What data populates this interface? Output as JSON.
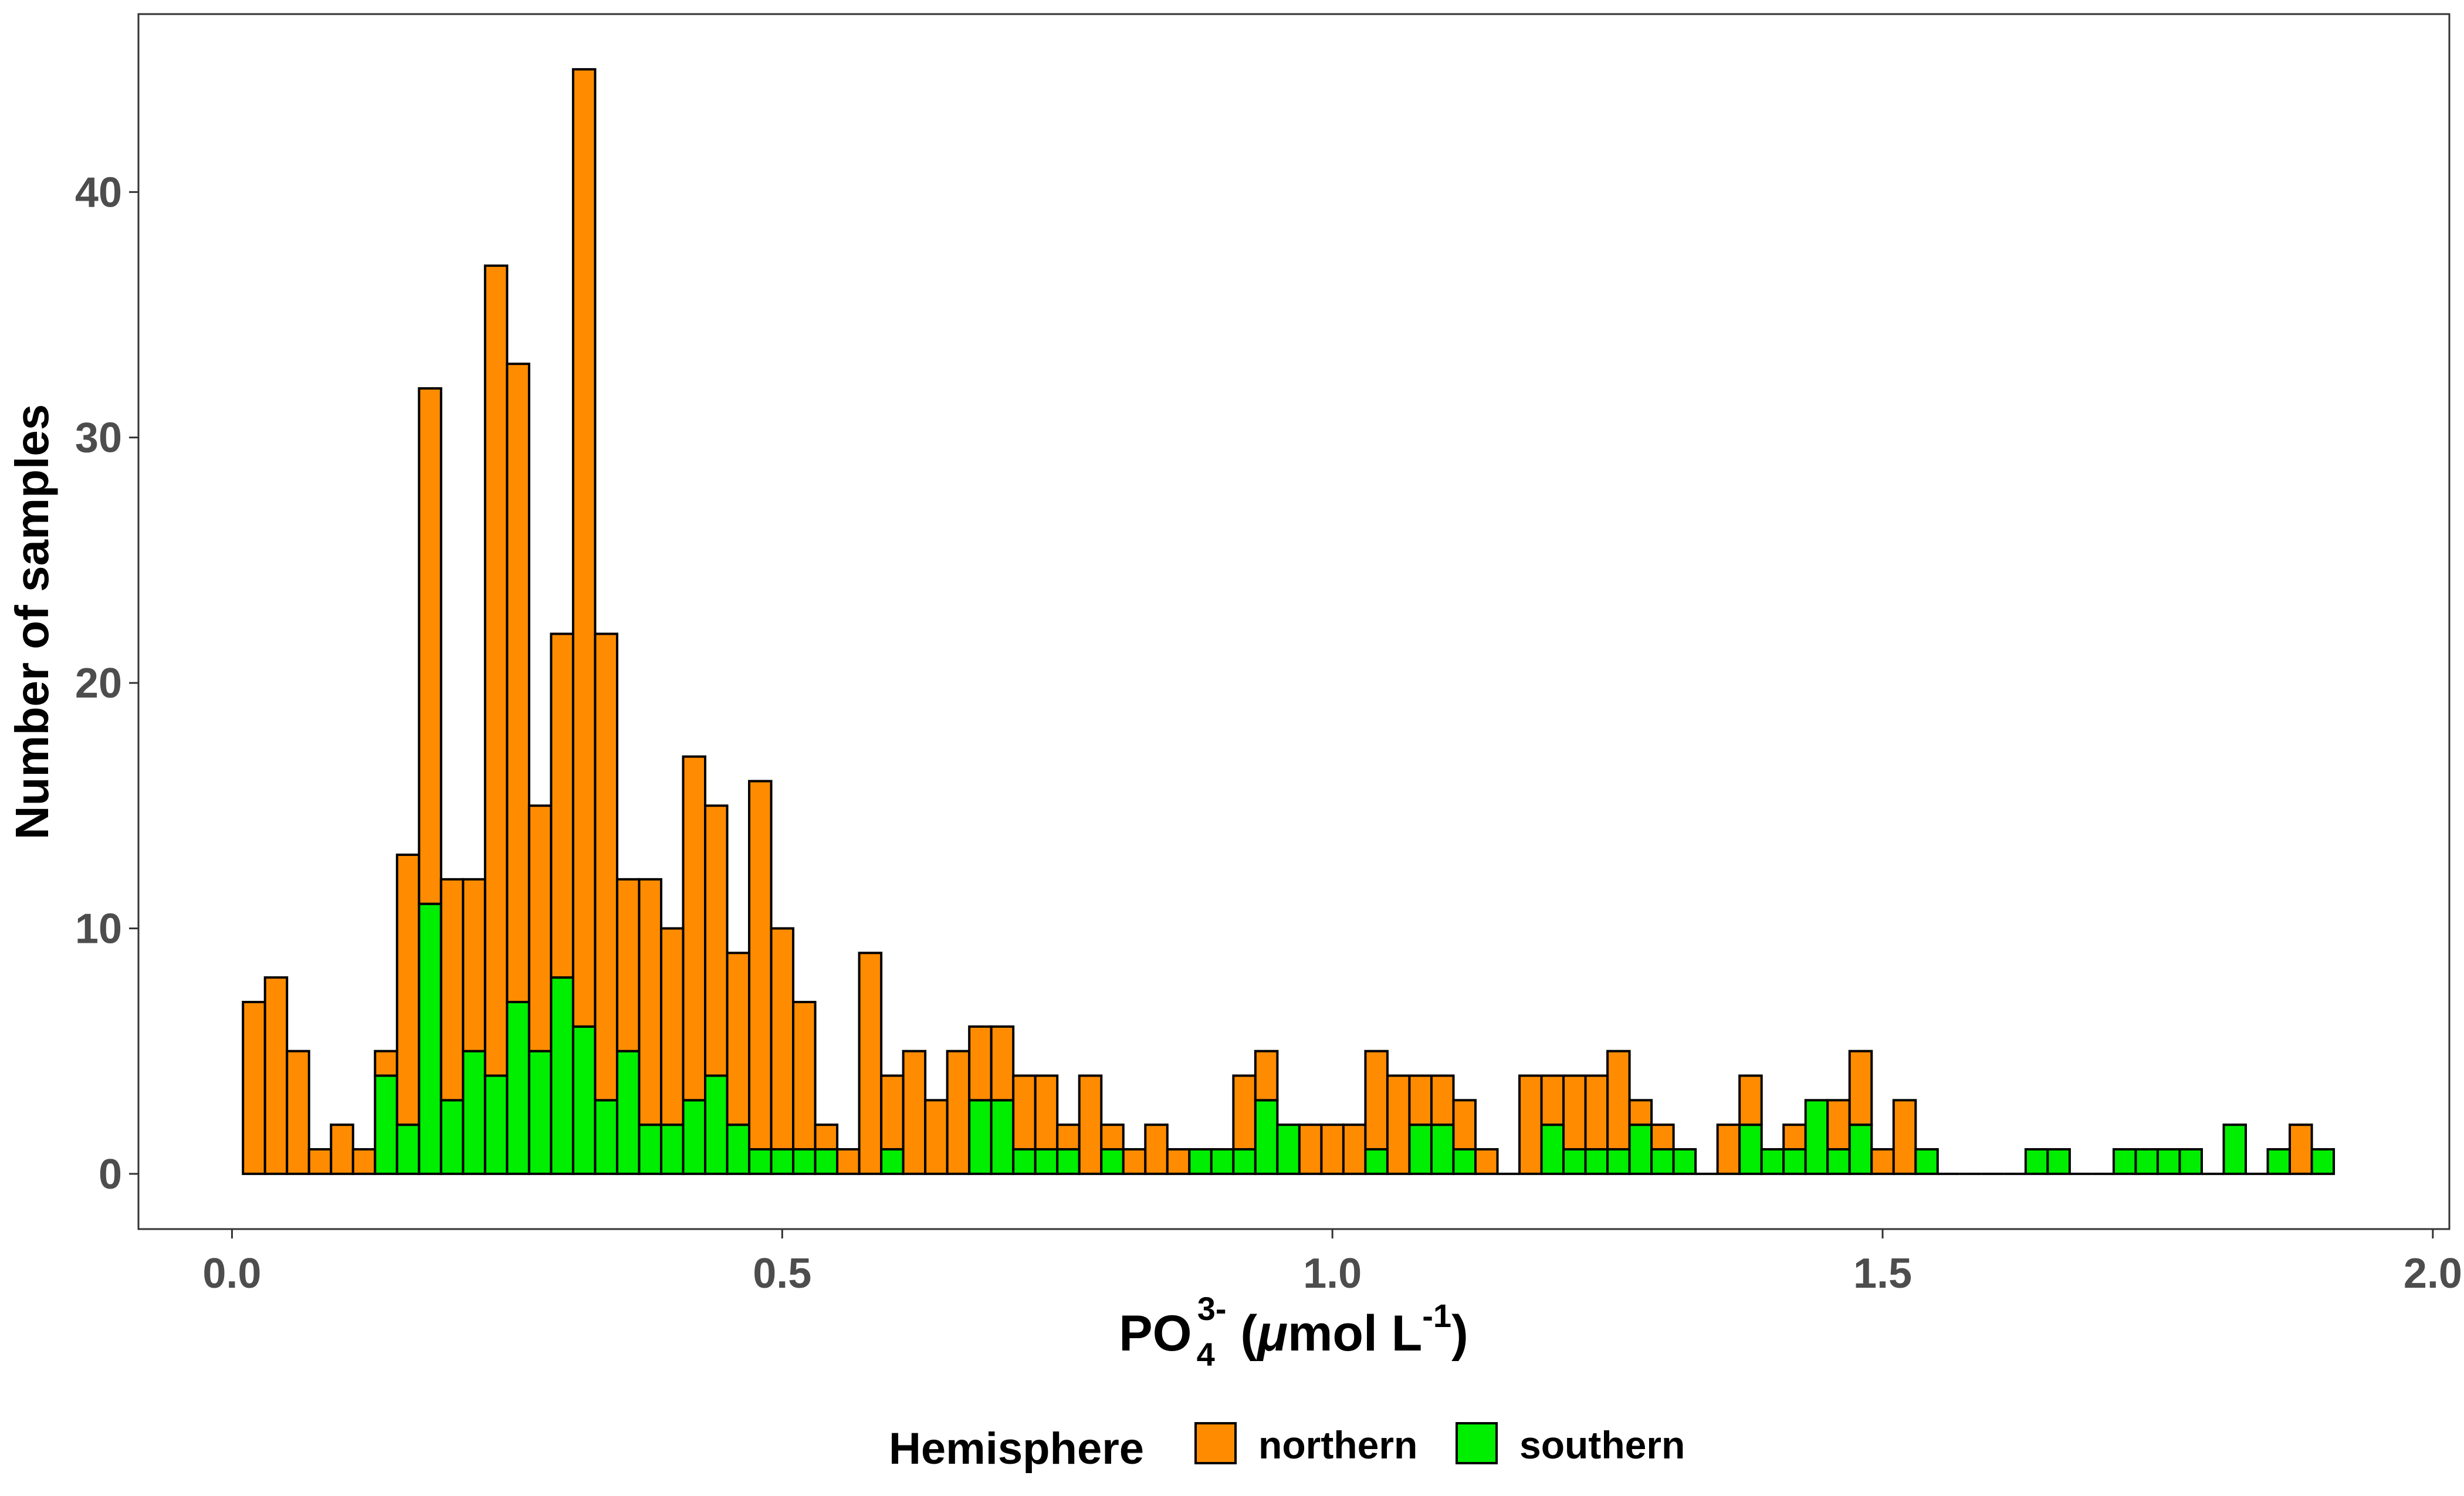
{
  "chart_data": {
    "type": "bar",
    "stacked": true,
    "x_base": "PO",
    "x_base_sub": "4",
    "x_base_sup": "3-",
    "x_unit_open": " (",
    "x_unit_mu": "μ",
    "x_unit_mid": "mol L",
    "x_unit_sup": "-1",
    "x_unit_close": ")",
    "ylabel": "Number of samples",
    "xlim": [
      -0.085,
      2.015
    ],
    "ylim": [
      -2.25,
      47.25
    ],
    "xticks": [
      "0.0",
      "0.5",
      "1.0",
      "1.5",
      "2.0"
    ],
    "xtick_values": [
      0.0,
      0.5,
      1.0,
      1.5,
      2.0
    ],
    "yticks": [
      "0",
      "10",
      "20",
      "30",
      "40"
    ],
    "ytick_values": [
      0,
      10,
      20,
      30,
      40
    ],
    "bin_width": 0.02,
    "bin_centers": [
      0.02,
      0.04,
      0.06,
      0.08,
      0.1,
      0.12,
      0.14,
      0.16,
      0.18,
      0.2,
      0.22,
      0.24,
      0.26,
      0.28,
      0.3,
      0.32,
      0.34,
      0.36,
      0.38,
      0.4,
      0.42,
      0.44,
      0.46,
      0.48,
      0.5,
      0.52,
      0.54,
      0.56,
      0.58,
      0.6,
      0.62,
      0.64,
      0.66,
      0.68,
      0.7,
      0.72,
      0.74,
      0.76,
      0.78,
      0.8,
      0.82,
      0.84,
      0.86,
      0.88,
      0.9,
      0.92,
      0.94,
      0.96,
      0.98,
      1.0,
      1.02,
      1.04,
      1.06,
      1.08,
      1.1,
      1.12,
      1.14,
      1.16,
      1.18,
      1.2,
      1.22,
      1.24,
      1.26,
      1.28,
      1.3,
      1.32,
      1.34,
      1.36,
      1.38,
      1.4,
      1.42,
      1.44,
      1.46,
      1.48,
      1.5,
      1.52,
      1.54,
      1.56,
      1.58,
      1.6,
      1.62,
      1.64,
      1.66,
      1.68,
      1.7,
      1.72,
      1.74,
      1.76,
      1.78,
      1.8,
      1.82,
      1.84,
      1.86,
      1.88,
      1.9
    ],
    "series": [
      {
        "name": "northern",
        "color": "#ff8c00",
        "values": [
          7,
          8,
          5,
          1,
          2,
          1,
          1,
          11,
          21,
          9,
          7,
          33,
          26,
          10,
          14,
          39,
          19,
          7,
          10,
          8,
          14,
          11,
          7,
          15,
          9,
          6,
          1,
          1,
          9,
          3,
          5,
          3,
          5,
          3,
          3,
          3,
          3,
          1,
          4,
          1,
          1,
          2,
          1,
          0,
          0,
          3,
          2,
          0,
          2,
          2,
          2,
          4,
          4,
          2,
          2,
          2,
          1,
          0,
          4,
          2,
          3,
          3,
          4,
          1,
          1,
          0,
          0,
          2,
          2,
          0,
          1,
          0,
          2,
          3,
          1,
          3,
          0,
          0,
          0,
          0,
          0,
          0,
          0,
          0,
          0,
          0,
          0,
          0,
          0,
          0,
          0,
          0,
          0,
          2,
          0
        ]
      },
      {
        "name": "southern",
        "color": "#00ee00",
        "values": [
          0,
          0,
          0,
          0,
          0,
          0,
          4,
          2,
          11,
          3,
          5,
          4,
          7,
          5,
          8,
          6,
          3,
          5,
          2,
          2,
          3,
          4,
          2,
          1,
          1,
          1,
          1,
          0,
          0,
          1,
          0,
          0,
          0,
          3,
          3,
          1,
          1,
          1,
          0,
          1,
          0,
          0,
          0,
          1,
          1,
          1,
          3,
          2,
          0,
          0,
          0,
          1,
          0,
          2,
          2,
          1,
          0,
          0,
          0,
          2,
          1,
          1,
          1,
          2,
          1,
          1,
          0,
          0,
          2,
          1,
          1,
          3,
          1,
          2,
          0,
          0,
          1,
          0,
          0,
          0,
          0,
          1,
          1,
          0,
          0,
          1,
          1,
          1,
          1,
          0,
          2,
          0,
          1,
          0,
          1
        ]
      }
    ],
    "legend": {
      "title": "Hemisphere",
      "position": "bottom"
    },
    "grid": false
  }
}
